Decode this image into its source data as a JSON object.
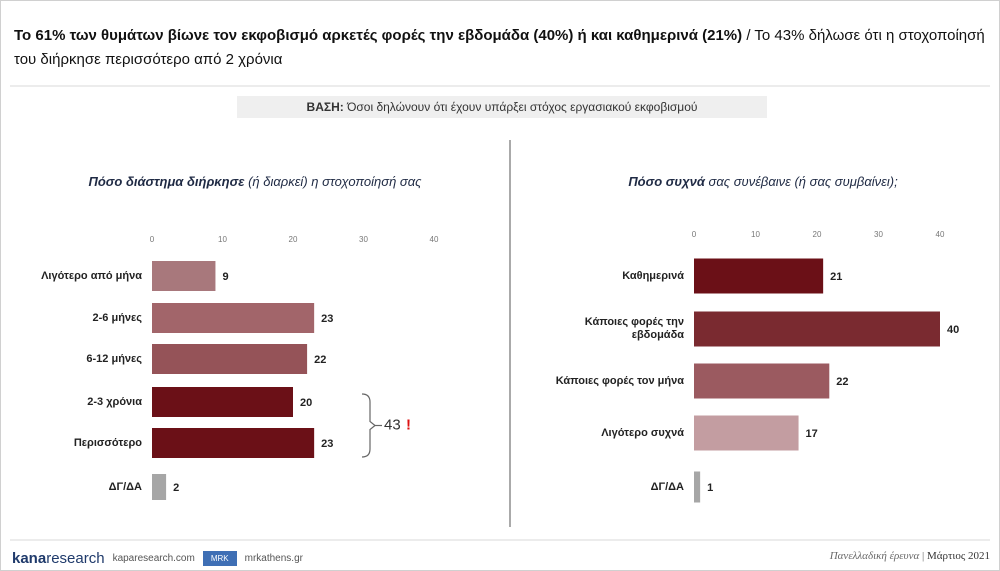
{
  "header": {
    "title_bold": "Το 61% των θυμάτων βίωνε τον εκφοβισμό αρκετές φορές την εβδομάδα (40%) ή και καθημερινά (21%)",
    "title_rest": "/ Το 43% δήλωσε ότι η στοχοποίησή του διήρκησε περισσότερο από 2 χρόνια"
  },
  "base": {
    "label": "ΒΑΣΗ:",
    "text": "Όσοι δηλώνουν ότι έχουν υπάρξει στόχος εργασιακού εκφοβισμού"
  },
  "chart_data": [
    {
      "type": "bar",
      "orientation": "horizontal",
      "title_bold": "Πόσο διάστημα διήρκησε",
      "title_rest": "(ή διαρκεί) η στοχοποίησή σας",
      "categories": [
        "Λιγότερο από μήνα",
        "2-6 μήνες",
        "6-12 μήνες",
        "2-3 χρόνια",
        "Περισσότερο",
        "ΔΓ/ΔΑ"
      ],
      "values": [
        9,
        23,
        22,
        20,
        23,
        2
      ],
      "colors": [
        "#a8787c",
        "#a2656a",
        "#955358",
        "#6b1017",
        "#6b1017",
        "#a6a6a6"
      ],
      "xlim": [
        0,
        40
      ],
      "xticks": [
        0,
        10,
        20,
        30,
        40
      ],
      "annotation": {
        "text": "43",
        "mark": "!"
      }
    },
    {
      "type": "bar",
      "orientation": "horizontal",
      "title_bold": "Πόσο συχνά",
      "title_rest": "σας συνέβαινε (ή σας συμβαίνει);",
      "categories": [
        "Καθημερινά",
        "Κάποιες φορές την εβδομάδα",
        "Κάποιες φορές τον μήνα",
        "Λιγότερο συχνά",
        "ΔΓ/ΔΑ"
      ],
      "values": [
        21,
        40,
        22,
        17,
        1
      ],
      "colors": [
        "#6b1017",
        "#7a2a30",
        "#9b5a60",
        "#c39da1",
        "#a6a6a6"
      ],
      "xlim": [
        0,
        40
      ],
      "xticks": [
        0,
        10,
        20,
        30,
        40
      ]
    }
  ],
  "footer": {
    "logo_a": "kana",
    "logo_b": "research",
    "site1": "kaparesearch.com",
    "badge": "MRK",
    "site2": "mrkathens.gr",
    "survey": "Πανελλαδική έρευνα",
    "date": "Μάρτιος 2021"
  }
}
